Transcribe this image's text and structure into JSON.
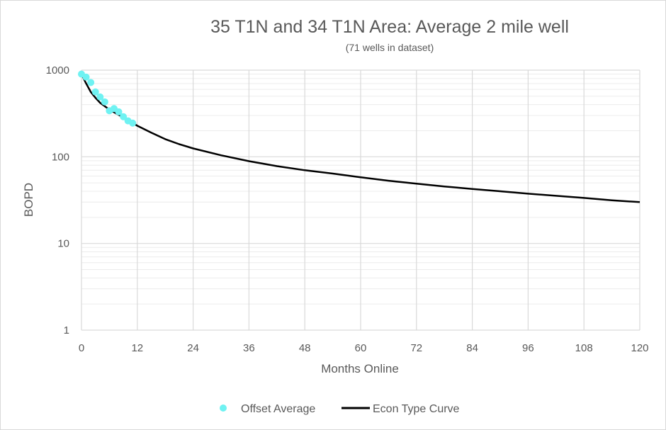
{
  "chart_data": {
    "type": "scatter",
    "title": "35 T1N and 34 T1N Area:  Average 2 mile well",
    "subtitle": "(71 wells in dataset)",
    "xlabel": "Months Online",
    "ylabel": "BOPD",
    "x_ticks": [
      "0",
      "12",
      "24",
      "36",
      "48",
      "60",
      "72",
      "84",
      "96",
      "108",
      "120"
    ],
    "y_ticks": [
      "1",
      "10",
      "100",
      "1000"
    ],
    "xlim": [
      0,
      120
    ],
    "ylim": [
      1,
      1000
    ],
    "y_scale": "log",
    "grid": true,
    "legend_position": "bottom",
    "series": [
      {
        "name": "Offset Average",
        "type": "scatter",
        "color": "#6ff2f2",
        "x": [
          0,
          1,
          2,
          3,
          4,
          5,
          6,
          7,
          8,
          9,
          10,
          11
        ],
        "y": [
          900,
          830,
          720,
          560,
          490,
          430,
          340,
          360,
          330,
          290,
          260,
          245
        ]
      },
      {
        "name": "Econ Type Curve",
        "type": "line",
        "color": "#000000",
        "x": [
          0,
          1,
          2,
          3,
          4,
          6,
          8,
          10,
          12,
          15,
          18,
          21,
          24,
          30,
          36,
          42,
          48,
          54,
          60,
          66,
          72,
          78,
          84,
          90,
          96,
          102,
          108,
          114,
          120
        ],
        "y": [
          900,
          700,
          560,
          480,
          420,
          350,
          305,
          265,
          228,
          190,
          160,
          140,
          125,
          104,
          89,
          78,
          70,
          64,
          58,
          53,
          49,
          45.5,
          42.5,
          40,
          37.5,
          35.5,
          33.5,
          31.5,
          30
        ]
      }
    ]
  }
}
